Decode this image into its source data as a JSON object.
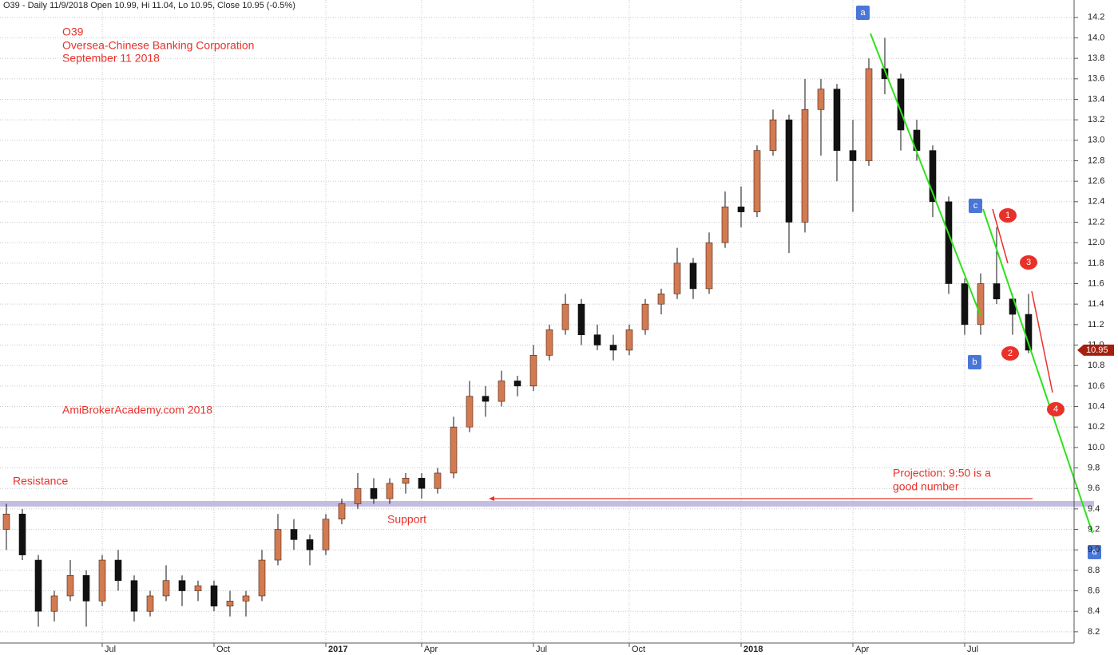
{
  "header": "O39 - Daily 11/9/2018 Open 10.99, Hi 11.04, Lo 10.95, Close 10.95 (-0.5%)",
  "chart_data": {
    "type": "candlestick",
    "title": "O39",
    "subtitle": [
      "Oversea-Chinese Banking Corporation",
      "September 11 2018"
    ],
    "annotations": {
      "site": "AmiBrokerAcademy.com  2018",
      "resistance": "Resistance",
      "support": "Support",
      "projection": [
        "Projection: 9:50 is a",
        "good number"
      ],
      "wave_labels": [
        "a",
        "b",
        "c",
        "d"
      ],
      "count_labels": [
        "1",
        "2",
        "3",
        "4"
      ]
    },
    "categories": [
      null,
      null,
      null,
      null,
      null,
      null,
      "Jul",
      null,
      null,
      null,
      null,
      null,
      null,
      "Oct",
      null,
      null,
      null,
      null,
      null,
      null,
      "2017",
      null,
      null,
      null,
      null,
      null,
      "Apr",
      null,
      null,
      null,
      null,
      null,
      null,
      "Jul",
      null,
      null,
      null,
      null,
      null,
      "Oct",
      null,
      null,
      null,
      null,
      null,
      null,
      "2018",
      null,
      null,
      null,
      null,
      null,
      null,
      "Apr",
      null,
      null,
      null,
      null,
      null,
      null,
      "Jul",
      null,
      null,
      null,
      null
    ],
    "open": [
      9.2,
      9.35,
      8.9,
      8.4,
      8.55,
      8.75,
      8.5,
      8.9,
      8.7,
      8.4,
      8.55,
      8.7,
      8.6,
      8.65,
      8.45,
      8.5,
      8.55,
      8.9,
      9.2,
      9.1,
      9.0,
      9.3,
      9.45,
      9.6,
      9.5,
      9.65,
      9.7,
      9.6,
      9.75,
      10.2,
      10.5,
      10.45,
      10.65,
      10.6,
      10.9,
      11.15,
      11.4,
      11.1,
      11.0,
      10.95,
      11.15,
      11.4,
      11.5,
      11.8,
      11.55,
      12.0,
      12.35,
      12.3,
      12.9,
      13.2,
      12.2,
      13.3,
      13.5,
      12.9,
      12.8,
      13.7,
      13.6,
      13.1,
      12.9,
      12.4,
      11.6,
      11.2,
      11.6,
      11.45,
      11.3
    ],
    "high": [
      9.45,
      9.4,
      8.95,
      8.6,
      8.9,
      8.8,
      8.95,
      9.0,
      8.75,
      8.6,
      8.85,
      8.75,
      8.7,
      8.7,
      8.6,
      8.6,
      9.0,
      9.35,
      9.3,
      9.15,
      9.35,
      9.5,
      9.75,
      9.7,
      9.7,
      9.75,
      9.75,
      9.8,
      10.3,
      10.65,
      10.6,
      10.75,
      10.7,
      11.0,
      11.2,
      11.5,
      11.45,
      11.2,
      11.1,
      11.2,
      11.45,
      11.55,
      11.95,
      11.85,
      12.1,
      12.5,
      12.55,
      12.95,
      13.3,
      13.25,
      13.6,
      13.6,
      13.55,
      13.2,
      13.8,
      14.0,
      13.65,
      13.2,
      12.95,
      12.45,
      11.65,
      11.7,
      12.15,
      11.5,
      11.5
    ],
    "low": [
      9.0,
      8.9,
      8.25,
      8.3,
      8.5,
      8.25,
      8.45,
      8.6,
      8.3,
      8.35,
      8.5,
      8.45,
      8.5,
      8.4,
      8.35,
      8.35,
      8.5,
      8.85,
      9.0,
      8.85,
      8.95,
      9.25,
      9.4,
      9.45,
      9.45,
      9.55,
      9.5,
      9.55,
      9.7,
      10.15,
      10.3,
      10.4,
      10.5,
      10.55,
      10.85,
      11.1,
      11.0,
      10.95,
      10.85,
      10.9,
      11.1,
      11.3,
      11.45,
      11.45,
      11.5,
      11.95,
      12.15,
      12.25,
      12.85,
      11.9,
      12.1,
      12.85,
      12.6,
      12.3,
      12.75,
      13.45,
      12.9,
      12.8,
      12.25,
      11.5,
      11.1,
      11.1,
      11.4,
      11.1,
      10.92
    ],
    "close": [
      9.35,
      8.95,
      8.4,
      8.55,
      8.75,
      8.5,
      8.9,
      8.7,
      8.4,
      8.55,
      8.7,
      8.6,
      8.65,
      8.45,
      8.5,
      8.55,
      8.9,
      9.2,
      9.1,
      9.0,
      9.3,
      9.45,
      9.6,
      9.5,
      9.65,
      9.7,
      9.6,
      9.75,
      10.2,
      10.5,
      10.45,
      10.65,
      10.6,
      10.9,
      11.15,
      11.4,
      11.1,
      11.0,
      10.95,
      11.15,
      11.4,
      11.5,
      11.8,
      11.55,
      12.0,
      12.35,
      12.3,
      12.9,
      13.2,
      12.2,
      13.3,
      13.5,
      12.9,
      12.8,
      13.7,
      13.6,
      13.1,
      12.9,
      12.4,
      11.6,
      11.2,
      11.6,
      11.45,
      11.3,
      10.95
    ],
    "up_color": "#d27a52",
    "down_color": "#111111",
    "resistance_level": 9.45,
    "projection_level": 9.5,
    "ylim": [
      8.09,
      14.37
    ],
    "yticks": [
      8.2,
      8.4,
      8.6,
      8.8,
      {
        "value": 9,
        "label": "9.0"
      },
      9.2,
      9.4,
      9.6,
      9.8,
      {
        "value": 10,
        "label": "10.0"
      },
      10.2,
      10.4,
      10.6,
      10.8,
      {
        "value": 11,
        "label": "11.0"
      },
      11.2,
      11.4,
      11.6,
      11.8,
      {
        "value": 12,
        "label": "12.0"
      },
      12.2,
      12.4,
      12.6,
      12.8,
      {
        "value": 13,
        "label": "13.0"
      },
      13.2,
      13.4,
      13.6,
      13.8,
      {
        "value": 14,
        "label": "14.0"
      },
      14.2
    ],
    "grid": true
  }
}
